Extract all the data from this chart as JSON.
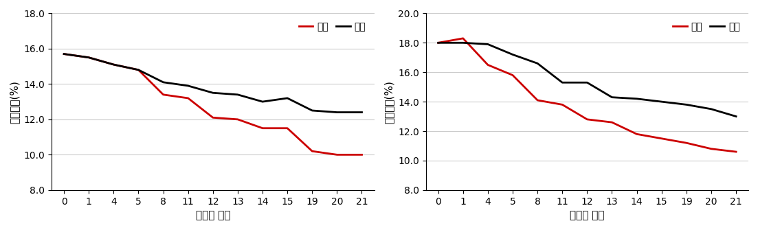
{
  "x_ticks": [
    0,
    1,
    4,
    5,
    8,
    11,
    12,
    13,
    14,
    15,
    19,
    20,
    21
  ],
  "left_chart": {
    "ylabel": "수분함량(%)",
    "xlabel": "처리후 일수",
    "ylim": [
      8.0,
      18.0
    ],
    "yticks": [
      8.0,
      10.0,
      12.0,
      14.0,
      16.0,
      18.0
    ],
    "햇빛": [
      15.7,
      15.5,
      15.1,
      14.8,
      13.4,
      13.2,
      12.1,
      12.0,
      11.5,
      11.5,
      10.2,
      10.0,
      10.0
    ],
    "그늘": [
      15.7,
      15.5,
      15.1,
      14.8,
      14.1,
      13.9,
      13.5,
      13.4,
      13.0,
      13.2,
      12.5,
      12.4,
      12.4
    ]
  },
  "right_chart": {
    "ylabel": "수분함량(%)",
    "xlabel": "처리후 일수",
    "ylim": [
      8.0,
      20.0
    ],
    "yticks": [
      8.0,
      10.0,
      12.0,
      14.0,
      16.0,
      18.0,
      20.0
    ],
    "햇빛": [
      18.0,
      18.3,
      16.5,
      15.8,
      14.1,
      13.8,
      12.8,
      12.6,
      11.8,
      11.5,
      11.2,
      10.8,
      10.6
    ],
    "그늘": [
      18.0,
      18.0,
      17.9,
      17.2,
      16.6,
      15.3,
      15.3,
      14.3,
      14.2,
      14.0,
      13.8,
      13.5,
      13.0
    ]
  },
  "line_colors": {
    "햇빛": "#cc0000",
    "그늘": "#000000"
  },
  "legend_labels": [
    "햇빛",
    "그늘"
  ],
  "background_color": "#ffffff",
  "grid_color": "#cccccc",
  "font_size_tick": 10,
  "font_size_label": 11,
  "font_size_legend": 10
}
